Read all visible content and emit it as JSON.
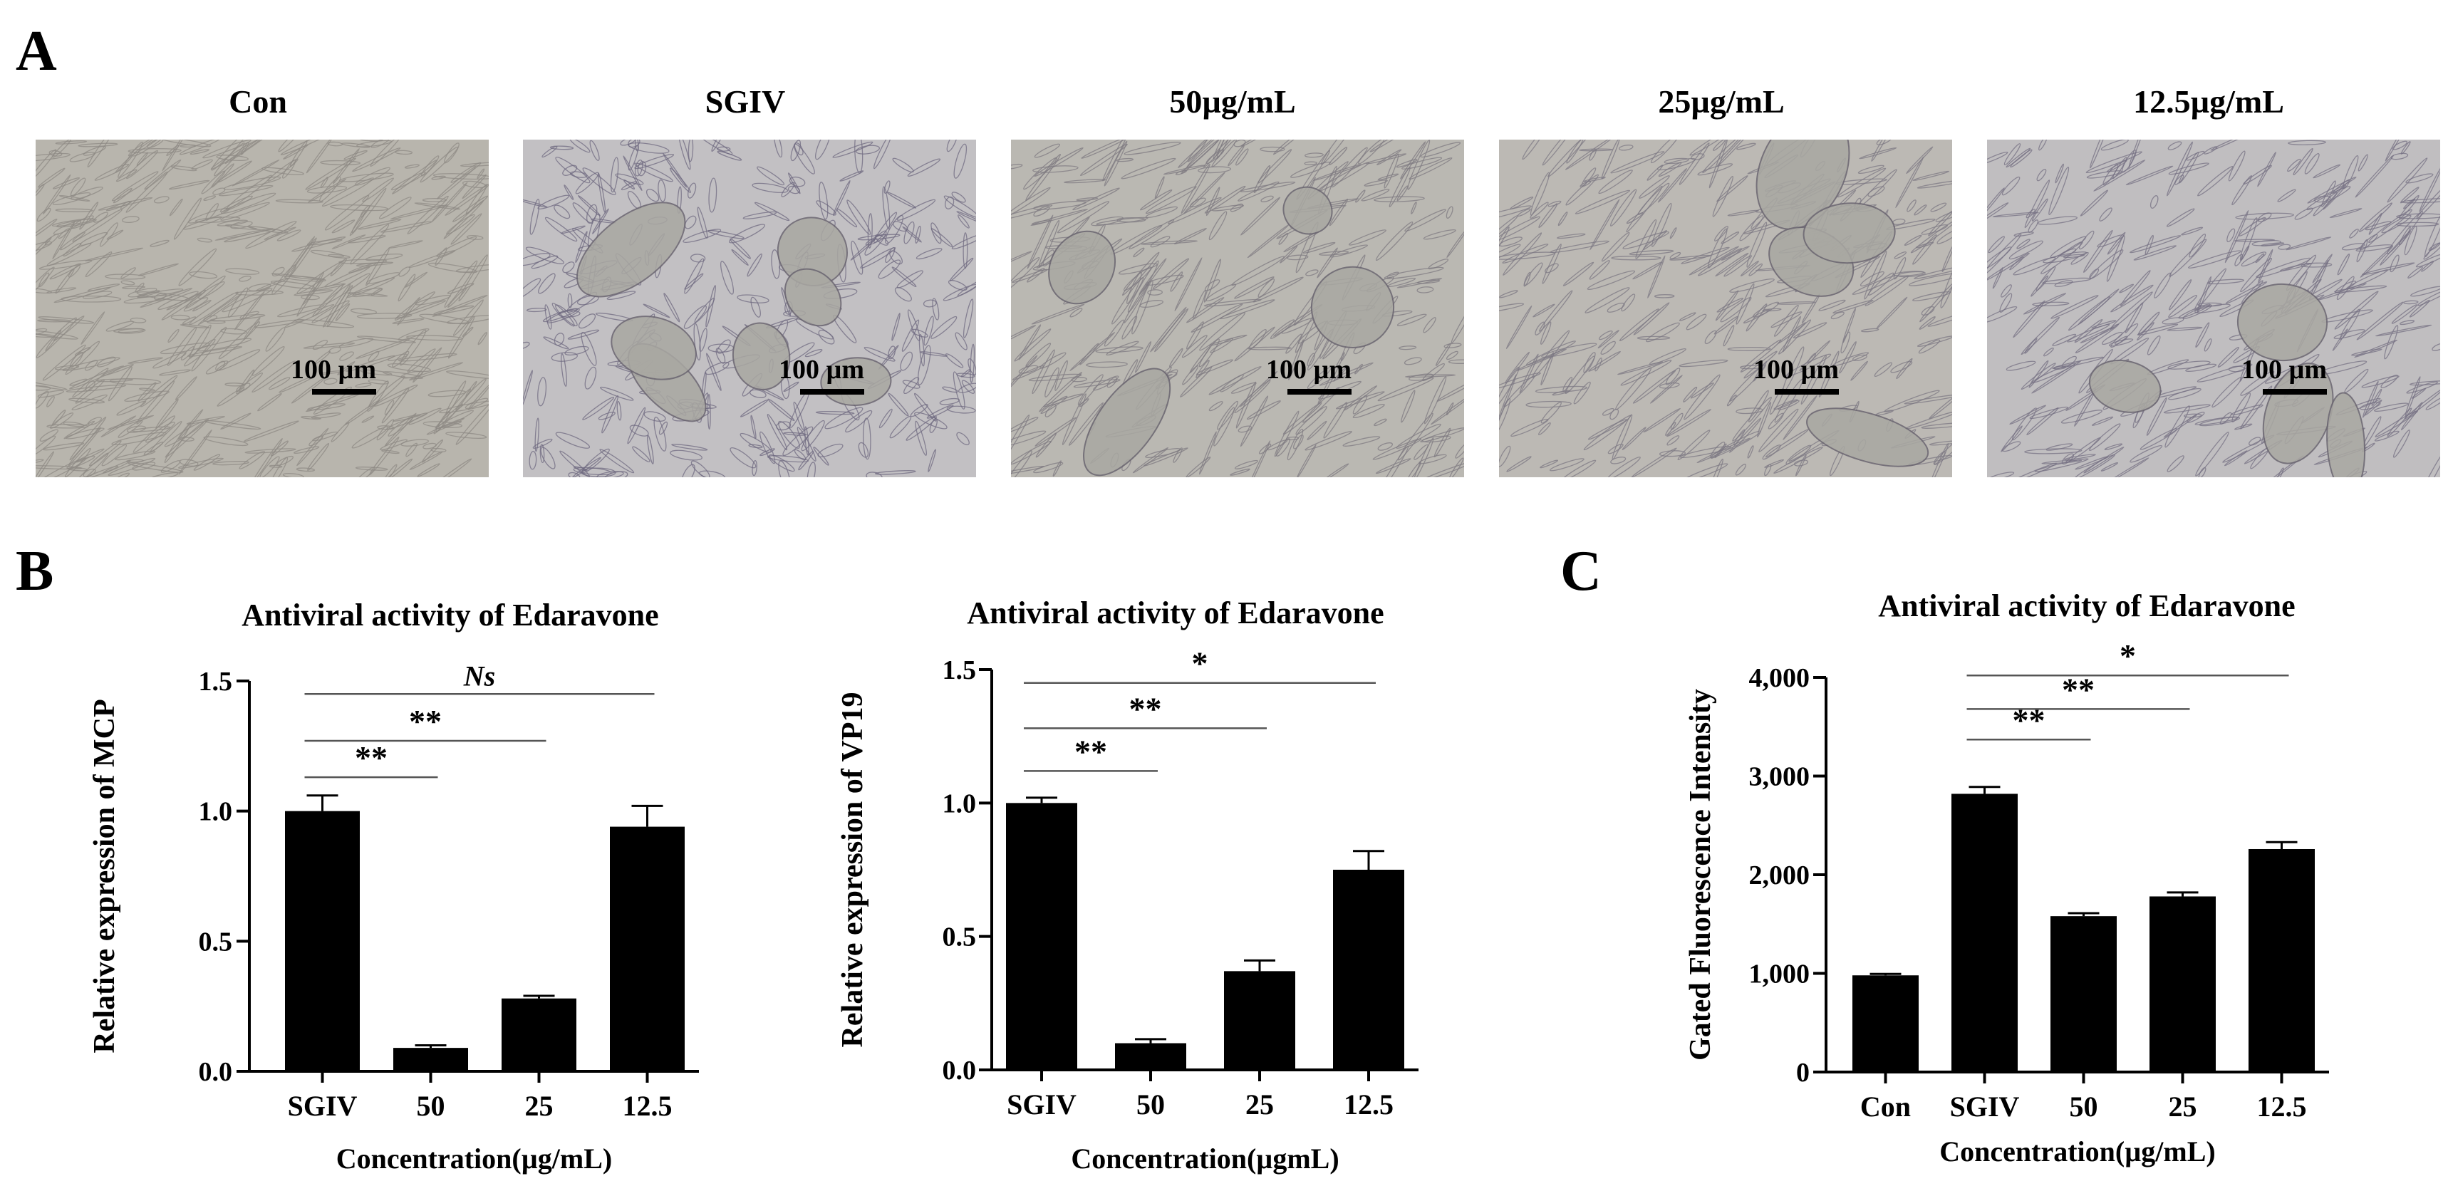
{
  "panels": {
    "a": "A",
    "b": "B",
    "c": "C"
  },
  "images": [
    {
      "title": "Con",
      "scale": "100 µm",
      "tint": "#b8b5ad",
      "cell": "#8d8a84"
    },
    {
      "title": "SGIV",
      "scale": "100 µm",
      "tint": "#c2c0c3",
      "cell": "#6f6a80"
    },
    {
      "title": "50µg/mL",
      "scale": "100 µm",
      "tint": "#bab8b2",
      "cell": "#7d7a80"
    },
    {
      "title": "25µg/mL",
      "scale": "100 µm",
      "tint": "#bcb9b4",
      "cell": "#7c7883"
    },
    {
      "title": "12.5µg/mL",
      "scale": "100 µm",
      "tint": "#c0bec0",
      "cell": "#757083"
    }
  ],
  "chart_data": [
    {
      "type": "bar",
      "title": "Antiviral activity of Edaravone",
      "xlabel": "Concentration(µg/mL)",
      "ylabel": "Relative expression of  MCP",
      "categories": [
        "SGIV",
        "50",
        "25",
        "12.5"
      ],
      "values": [
        1.0,
        0.09,
        0.28,
        0.94
      ],
      "errors": [
        0.06,
        0.01,
        0.01,
        0.08
      ],
      "ylim": [
        0,
        1.5
      ],
      "yticks": [
        "0.0",
        "0.5",
        "1.0",
        "1.5"
      ],
      "ytick_values": [
        0,
        0.5,
        1.0,
        1.5
      ],
      "bar_color": "#000000",
      "significance": [
        {
          "from": 0,
          "to": 1,
          "label": "**",
          "y": 1.13,
          "italic": false
        },
        {
          "from": 0,
          "to": 2,
          "label": "**",
          "y": 1.27,
          "italic": false
        },
        {
          "from": 0,
          "to": 3,
          "label": "Ns",
          "y": 1.45,
          "italic": true
        }
      ]
    },
    {
      "type": "bar",
      "title": "Antiviral activity of Edaravone",
      "xlabel": "Concentration(µgmL)",
      "ylabel": "Relative expression of  VP19",
      "categories": [
        "SGIV",
        "50",
        "25",
        "12.5"
      ],
      "values": [
        1.0,
        0.1,
        0.37,
        0.75
      ],
      "errors": [
        0.02,
        0.015,
        0.04,
        0.07
      ],
      "ylim": [
        0,
        1.5
      ],
      "yticks": [
        "0.0",
        "0.5",
        "1.0",
        "1.5"
      ],
      "ytick_values": [
        0,
        0.5,
        1.0,
        1.5
      ],
      "bar_color": "#000000",
      "significance": [
        {
          "from": 0,
          "to": 1,
          "label": "**",
          "y": 1.12,
          "italic": false
        },
        {
          "from": 0,
          "to": 2,
          "label": "**",
          "y": 1.28,
          "italic": false
        },
        {
          "from": 0,
          "to": 3,
          "label": "*",
          "y": 1.45,
          "italic": false
        }
      ]
    },
    {
      "type": "bar",
      "title": "Antiviral activity of Edaravone",
      "xlabel": "Concentration(µg/mL)",
      "ylabel": "Gated Fluorescence Intensity",
      "categories": [
        "Con",
        "SGIV",
        "50",
        "25",
        "12.5"
      ],
      "values": [
        980,
        2820,
        1580,
        1780,
        2260
      ],
      "errors": [
        15,
        70,
        30,
        40,
        70
      ],
      "ylim": [
        0,
        4000
      ],
      "yticks": [
        "0",
        "1,000",
        "2,000",
        "3,000",
        "4,000"
      ],
      "ytick_values": [
        0,
        1000,
        2000,
        3000,
        4000
      ],
      "bar_color": "#000000",
      "significance": [
        {
          "from": 1,
          "to": 2,
          "label": "**",
          "y": 3370,
          "italic": false
        },
        {
          "from": 1,
          "to": 3,
          "label": "**",
          "y": 3680,
          "italic": false
        },
        {
          "from": 1,
          "to": 4,
          "label": "*",
          "y": 4020,
          "italic": false
        }
      ]
    }
  ]
}
